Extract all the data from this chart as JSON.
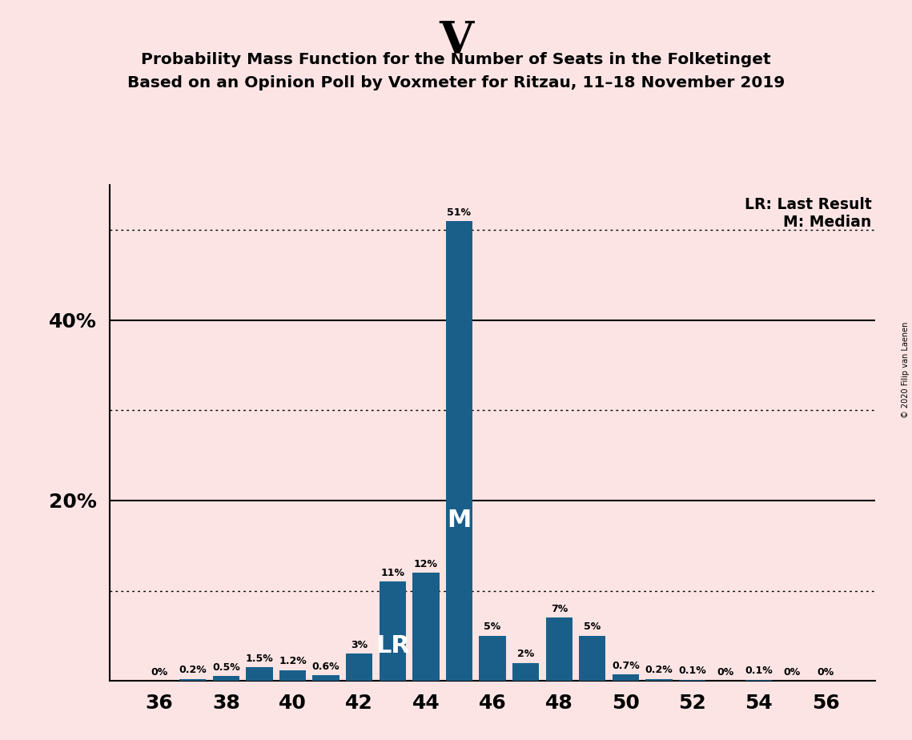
{
  "title_main": "V",
  "title_line1": "Probability Mass Function for the Number of Seats in the Folketinget",
  "title_line2": "Based on an Opinion Poll by Voxmeter for Ritzau, 11–18 November 2019",
  "copyright": "© 2020 Filip van Laenen",
  "seats": [
    36,
    37,
    38,
    39,
    40,
    41,
    42,
    43,
    44,
    45,
    46,
    47,
    48,
    49,
    50,
    51,
    52,
    53,
    54,
    55,
    56
  ],
  "probabilities": [
    0.0,
    0.2,
    0.5,
    1.5,
    1.2,
    0.6,
    3.0,
    11.0,
    12.0,
    51.0,
    5.0,
    2.0,
    7.0,
    5.0,
    0.7,
    0.2,
    0.1,
    0.0,
    0.1,
    0.0,
    0.0
  ],
  "bar_color": "#1a5f8a",
  "background_color": "#fce4e4",
  "median_seat": 45,
  "last_result_seat": 43,
  "xlabel_seats": [
    36,
    38,
    40,
    42,
    44,
    46,
    48,
    50,
    52,
    54,
    56
  ],
  "bar_labels": [
    "0%",
    "0.2%",
    "0.5%",
    "1.5%",
    "1.2%",
    "0.6%",
    "3%",
    "11%",
    "12%",
    "51%",
    "5%",
    "2%",
    "7%",
    "5%",
    "0.7%",
    "0.2%",
    "0.1%",
    "0%",
    "0.1%",
    "0%",
    "0%"
  ],
  "label_in_bar": {
    "45": "M",
    "43": "LR"
  },
  "solid_line_y": [
    20,
    40
  ],
  "dotted_line_y": [
    10,
    30,
    50
  ],
  "ytick_positions": [
    20,
    40
  ],
  "ytick_labels": [
    "20%",
    "40%"
  ],
  "legend_lr": "LR: Last Result",
  "legend_m": "M: Median",
  "ylim_max": 55,
  "xlim_min": 34.5,
  "xlim_max": 57.5
}
